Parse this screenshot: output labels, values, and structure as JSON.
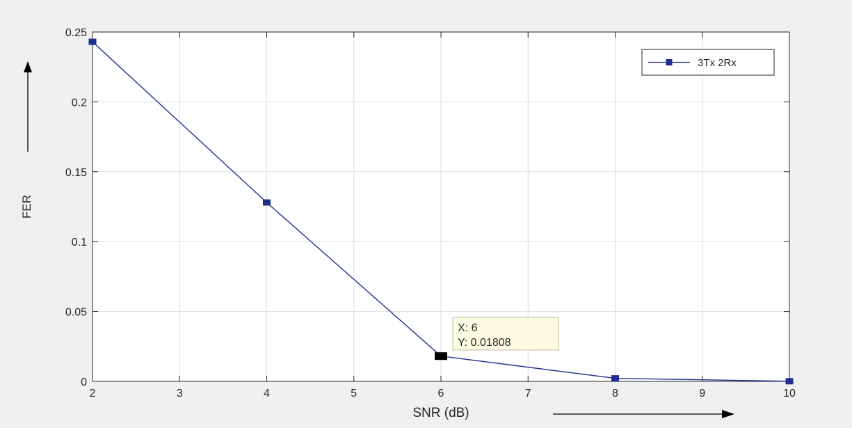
{
  "chart_data": {
    "type": "line",
    "title": "",
    "xlabel": "SNR (dB)",
    "ylabel": "FER",
    "xlim": [
      2,
      10
    ],
    "ylim": [
      0,
      0.25
    ],
    "grid": true,
    "legend_position": "top-right",
    "x_ticks": [
      2,
      3,
      4,
      5,
      6,
      7,
      8,
      9,
      10
    ],
    "x_tick_labels": [
      "2",
      "3",
      "4",
      "5",
      "6",
      "7",
      "8",
      "9",
      "10"
    ],
    "y_ticks": [
      0,
      0.05,
      0.1,
      0.15,
      0.2,
      0.25
    ],
    "y_tick_labels": [
      "0",
      "0.05",
      "0.1",
      "0.15",
      "0.2",
      "0.25"
    ],
    "series": [
      {
        "name": "3Tx 2Rx",
        "color": "#1f2f8f",
        "marker": "square",
        "x": [
          2,
          4,
          6,
          8,
          10
        ],
        "y": [
          0.243,
          0.128,
          0.01808,
          0.0022,
          0.0001
        ]
      }
    ],
    "datatip": {
      "x": 6,
      "y": 0.01808,
      "x_text": "X: 6",
      "y_text": "Y: 0.01808"
    },
    "colors": {
      "background": "#f0f0f0",
      "axes_bg": "#ffffff",
      "grid": "#dedede",
      "datatip_bg": "#fbfbe2"
    }
  }
}
